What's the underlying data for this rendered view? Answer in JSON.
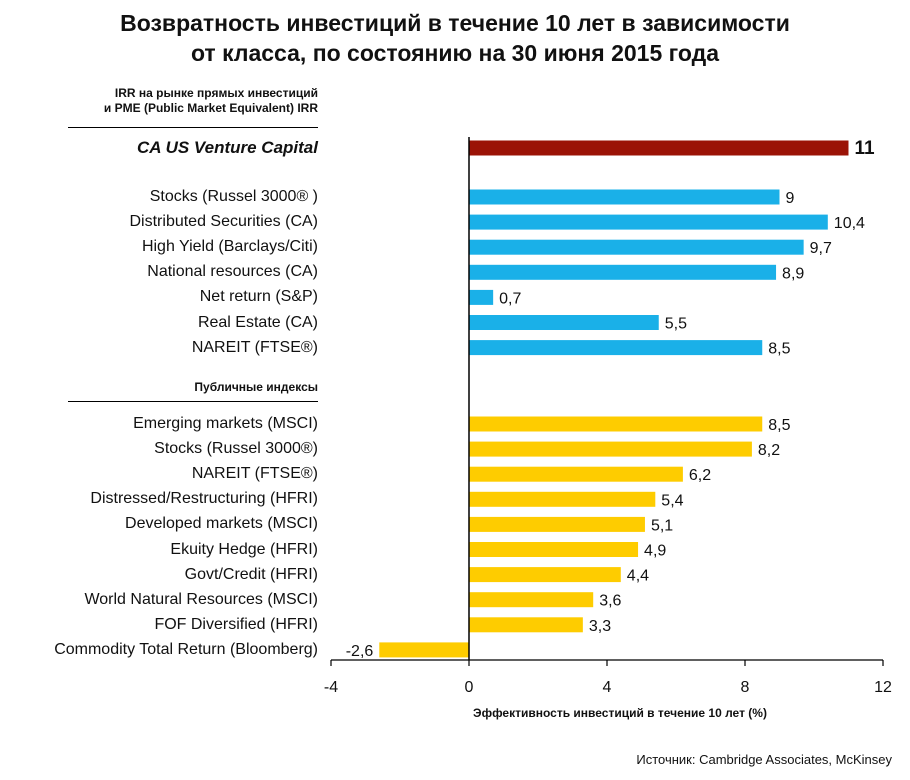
{
  "title_line1": "Возвратность инвестиций в течение 10 лет в зависимости",
  "title_line2": "от класса, по состоянию на 30 июня 2015 года",
  "section1_line1": "IRR на рынке прямых инвестиций",
  "section1_line2": "и PME (Public Market Equivalent) IRR",
  "section2": "Публичные индексы",
  "source": "Источник: Cambridge Associates, McKinsey",
  "colors": {
    "highlight": "#9b1306",
    "private": "#1ab0e8",
    "public": "#fecc00"
  },
  "chart_data": {
    "type": "bar",
    "orientation": "horizontal",
    "title": "Возвратность инвестиций в течение 10 лет в зависимости от класса, по состоянию на 30 июня 2015 года",
    "xlabel": "Эффективность инвестиций в течение 10 лет (%)",
    "xlim": [
      -4,
      12
    ],
    "xticks": [
      "-4",
      "0",
      "4",
      "8",
      "12"
    ],
    "groups": [
      {
        "name": "",
        "items": [
          {
            "label": "CA US Venture Capital",
            "value": 11,
            "value_label": "11"
          }
        ]
      },
      {
        "name": "IRR на рынке прямых инвестиций и PME (Public Market Equivalent) IRR",
        "items": [
          {
            "label": "Stocks (Russel 3000® )",
            "value": 9,
            "value_label": "9"
          },
          {
            "label": "Distributed Securities (CA)",
            "value": 10.4,
            "value_label": "10,4"
          },
          {
            "label": "High Yield (Barclays/Citi)",
            "value": 9.7,
            "value_label": "9,7"
          },
          {
            "label": "National resources (CA)",
            "value": 8.9,
            "value_label": "8,9"
          },
          {
            "label": "Net return (S&P)",
            "value": 0.7,
            "value_label": "0,7"
          },
          {
            "label": "Real Estate (CA)",
            "value": 5.5,
            "value_label": "5,5"
          },
          {
            "label": "NAREIT (FTSE®)",
            "value": 8.5,
            "value_label": "8,5"
          }
        ]
      },
      {
        "name": "Публичные индексы",
        "items": [
          {
            "label": "Emerging markets (MSCI)",
            "value": 8.5,
            "value_label": "8,5"
          },
          {
            "label": "Stocks (Russel 3000®)",
            "value": 8.2,
            "value_label": "8,2"
          },
          {
            "label": "NAREIT (FTSE®)",
            "value": 6.2,
            "value_label": "6,2"
          },
          {
            "label": "Distressed/Restructuring (HFRI)",
            "value": 5.4,
            "value_label": "5,4"
          },
          {
            "label": "Developed markets (MSCI)",
            "value": 5.1,
            "value_label": "5,1"
          },
          {
            "label": "Ekuity Hedge (HFRI)",
            "value": 4.9,
            "value_label": "4,9"
          },
          {
            "label": "Govt/Credit (HFRI)",
            "value": 4.4,
            "value_label": "4,4"
          },
          {
            "label": "World Natural Resources (MSCI)",
            "value": 3.6,
            "value_label": "3,6"
          },
          {
            "label": "FOF Diversified (HFRI)",
            "value": 3.3,
            "value_label": "3,3"
          },
          {
            "label": "Commodity Total Return (Bloomberg)",
            "value": -2.6,
            "value_label": "-2,6"
          }
        ]
      }
    ]
  }
}
